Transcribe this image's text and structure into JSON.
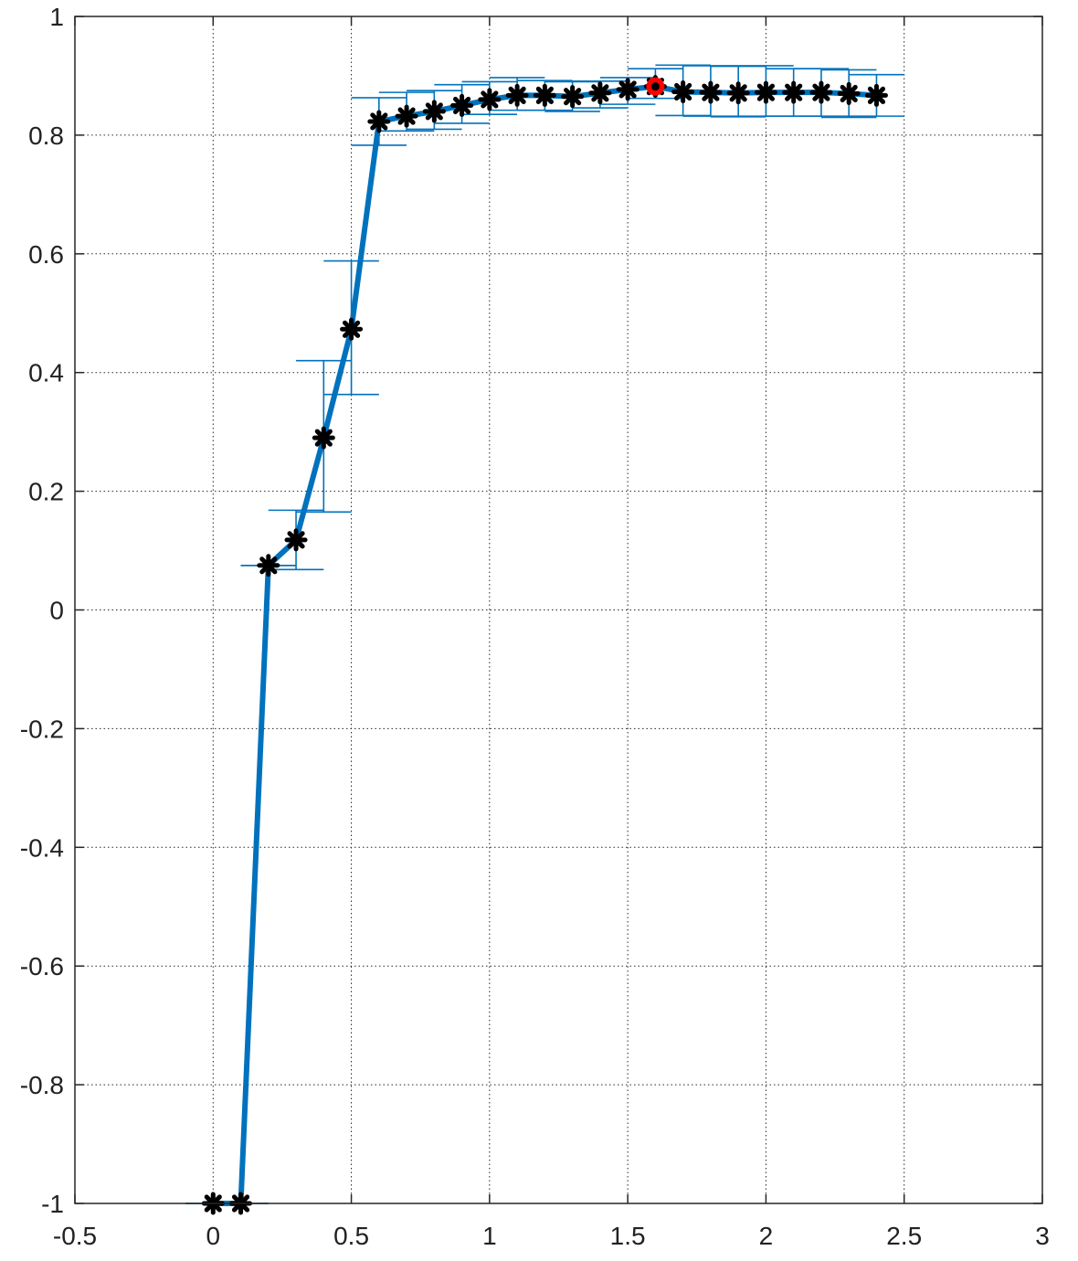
{
  "chart_data": {
    "type": "line",
    "title": "",
    "xlabel": "",
    "ylabel": "",
    "xlim": [
      -0.5,
      3
    ],
    "ylim": [
      -1,
      1
    ],
    "grid": true,
    "x_ticks": [
      -0.5,
      0,
      0.5,
      1,
      1.5,
      2,
      2.5,
      3
    ],
    "x_tick_labels": [
      "-0.5",
      "0",
      "0.5",
      "1",
      "1.5",
      "2",
      "2.5",
      "3"
    ],
    "y_ticks": [
      -1,
      -0.8,
      -0.6,
      -0.4,
      -0.2,
      0,
      0.2,
      0.4,
      0.6,
      0.8,
      1
    ],
    "y_tick_labels": [
      "-1",
      "-0.8",
      "-0.6",
      "-0.4",
      "-0.2",
      "0",
      "0.2",
      "0.4",
      "0.6",
      "0.8",
      "1"
    ],
    "series": [
      {
        "color": "#0072BD",
        "marker": "asterisk",
        "marker_color": "#000000",
        "x": [
          0,
          0.1,
          0.2,
          0.3,
          0.4,
          0.5,
          0.6,
          0.7,
          0.8,
          0.9,
          1.0,
          1.1,
          1.2,
          1.3,
          1.4,
          1.5,
          1.6,
          1.7,
          1.8,
          1.9,
          2.0,
          2.1,
          2.2,
          2.3,
          2.4
        ],
        "y": [
          -1,
          -1,
          0.075,
          0.118,
          0.29,
          0.473,
          0.823,
          0.832,
          0.84,
          0.85,
          0.86,
          0.867,
          0.867,
          0.865,
          0.871,
          0.877,
          0.882,
          0.873,
          0.872,
          0.871,
          0.872,
          0.872,
          0.872,
          0.87,
          0.867
        ],
        "err_low": [
          0,
          0,
          0,
          0.05,
          0.125,
          0.11,
          0.04,
          0.025,
          0.03,
          0.03,
          0.025,
          0.025,
          0.025,
          0.025,
          0.025,
          0.025,
          0.02,
          0.04,
          0.04,
          0.04,
          0.04,
          0.04,
          0.04,
          0.04,
          0.035
        ],
        "err_high": [
          0,
          0,
          0,
          0.05,
          0.13,
          0.115,
          0.04,
          0.04,
          0.035,
          0.035,
          0.03,
          0.03,
          0.025,
          0.025,
          0.02,
          0.02,
          0.03,
          0.045,
          0.045,
          0.045,
          0.045,
          0.04,
          0.04,
          0.04,
          0.035
        ]
      }
    ],
    "highlight_point": {
      "x": 1.6,
      "y": 0.882,
      "ring_color": "#ff0000",
      "dot_color": "#000000"
    }
  }
}
